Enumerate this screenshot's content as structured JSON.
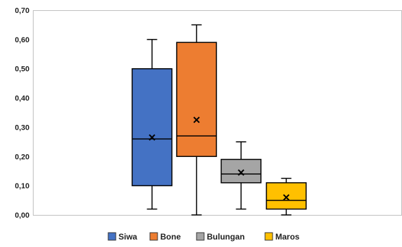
{
  "chart_data": {
    "type": "boxplot",
    "title": "",
    "xlabel": "",
    "ylabel": "",
    "ylim": [
      0,
      0.7
    ],
    "y_ticks": [
      "0,00",
      "0,10",
      "0,20",
      "0,30",
      "0,40",
      "0,50",
      "0,60",
      "0,70"
    ],
    "y_tick_values": [
      0,
      0.1,
      0.2,
      0.3,
      0.4,
      0.5,
      0.6,
      0.7
    ],
    "grid": false,
    "legend_position": "bottom",
    "series": [
      {
        "name": "Siwa",
        "color": "#4472C4",
        "min": 0.02,
        "q1": 0.1,
        "median": 0.26,
        "q3": 0.5,
        "max": 0.6,
        "mean": 0.265
      },
      {
        "name": "Bone",
        "color": "#ED7D31",
        "min": 0.0,
        "q1": 0.2,
        "median": 0.27,
        "q3": 0.59,
        "max": 0.65,
        "mean": 0.325
      },
      {
        "name": "Bulungan",
        "color": "#A5A5A5",
        "min": 0.02,
        "q1": 0.11,
        "median": 0.14,
        "q3": 0.19,
        "max": 0.25,
        "mean": 0.145
      },
      {
        "name": "Maros",
        "color": "#FFC000",
        "min": 0.0,
        "q1": 0.02,
        "median": 0.05,
        "q3": 0.11,
        "max": 0.125,
        "mean": 0.06
      }
    ]
  }
}
